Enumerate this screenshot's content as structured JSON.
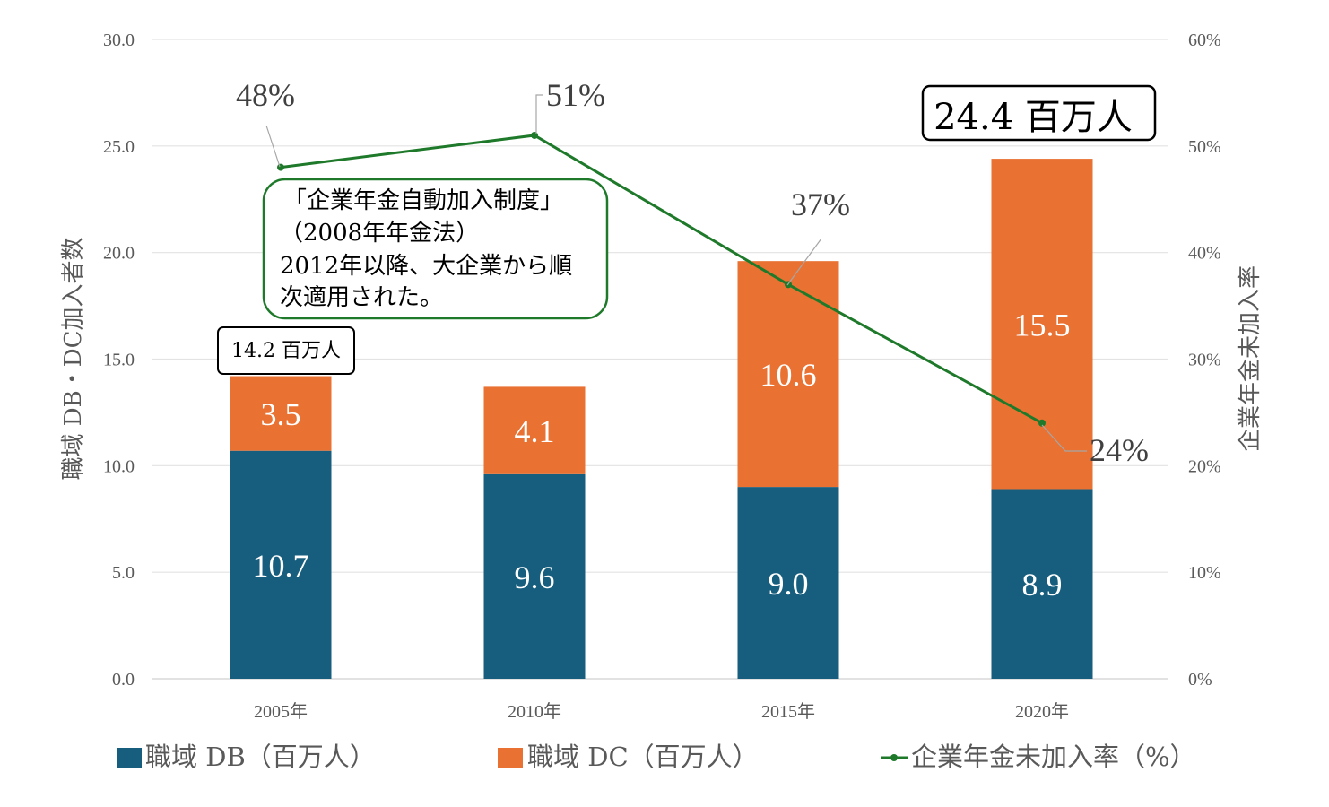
{
  "chart_data": {
    "type": "bar",
    "stacked": true,
    "categories": [
      "2005年",
      "2010年",
      "2015年",
      "2020年"
    ],
    "series": [
      {
        "name": "職域 DB（百万人）",
        "values": [
          10.7,
          9.6,
          9.0,
          8.9
        ],
        "color": "#175E7E",
        "axis": "left",
        "type": "bar"
      },
      {
        "name": "職域 DC（百万人）",
        "values": [
          3.5,
          4.1,
          10.6,
          15.5
        ],
        "color": "#E97132",
        "axis": "left",
        "type": "bar"
      },
      {
        "name": "企業年金未加入率（%）",
        "values": [
          48,
          51,
          37,
          24
        ],
        "color": "#1E7A2A",
        "axis": "right",
        "type": "line"
      }
    ],
    "rate_labels": [
      "48%",
      "51%",
      "37%",
      "24%"
    ],
    "ylabel": "職域 DB・DC加入者数",
    "y2label": "企業年金未加入率",
    "ylim": [
      0,
      30
    ],
    "y2lim": [
      0,
      60
    ],
    "yticks": [
      "0.0",
      "5.0",
      "10.0",
      "15.0",
      "20.0",
      "25.0",
      "30.0"
    ],
    "y2ticks": [
      "0%",
      "10%",
      "20%",
      "30%",
      "40%",
      "50%",
      "60%"
    ],
    "grid": true,
    "legend": "bottom",
    "annotations": {
      "total_2005": "14.2 百万人",
      "total_2020": "24.4 百万人",
      "note_lines": [
        "「企業年金自動加入制度」",
        "（2008年年金法）",
        "2012年以降、大企業から順",
        "次適用された。"
      ]
    }
  }
}
